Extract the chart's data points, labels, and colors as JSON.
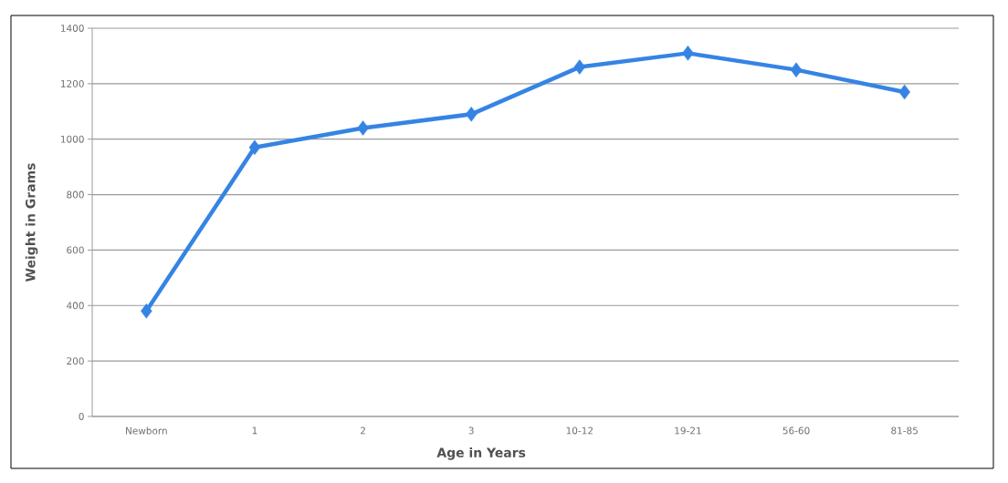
{
  "chart_data": {
    "type": "line",
    "xlabel": "Age in Years",
    "ylabel": "Weight in Grams",
    "categories": [
      "Newborn",
      "1",
      "2",
      "3",
      "10-12",
      "19-21",
      "56-60",
      "81-85"
    ],
    "series": [
      {
        "color": "#3584e4",
        "values": [
          380,
          970,
          1040,
          1090,
          1260,
          1310,
          1250,
          1170
        ]
      }
    ],
    "ylim": [
      0,
      1400
    ],
    "yticks": [
      0,
      200,
      400,
      600,
      800,
      1000,
      1200,
      1400
    ],
    "grid": "y",
    "marker": "diamond",
    "line_style": "solid"
  }
}
